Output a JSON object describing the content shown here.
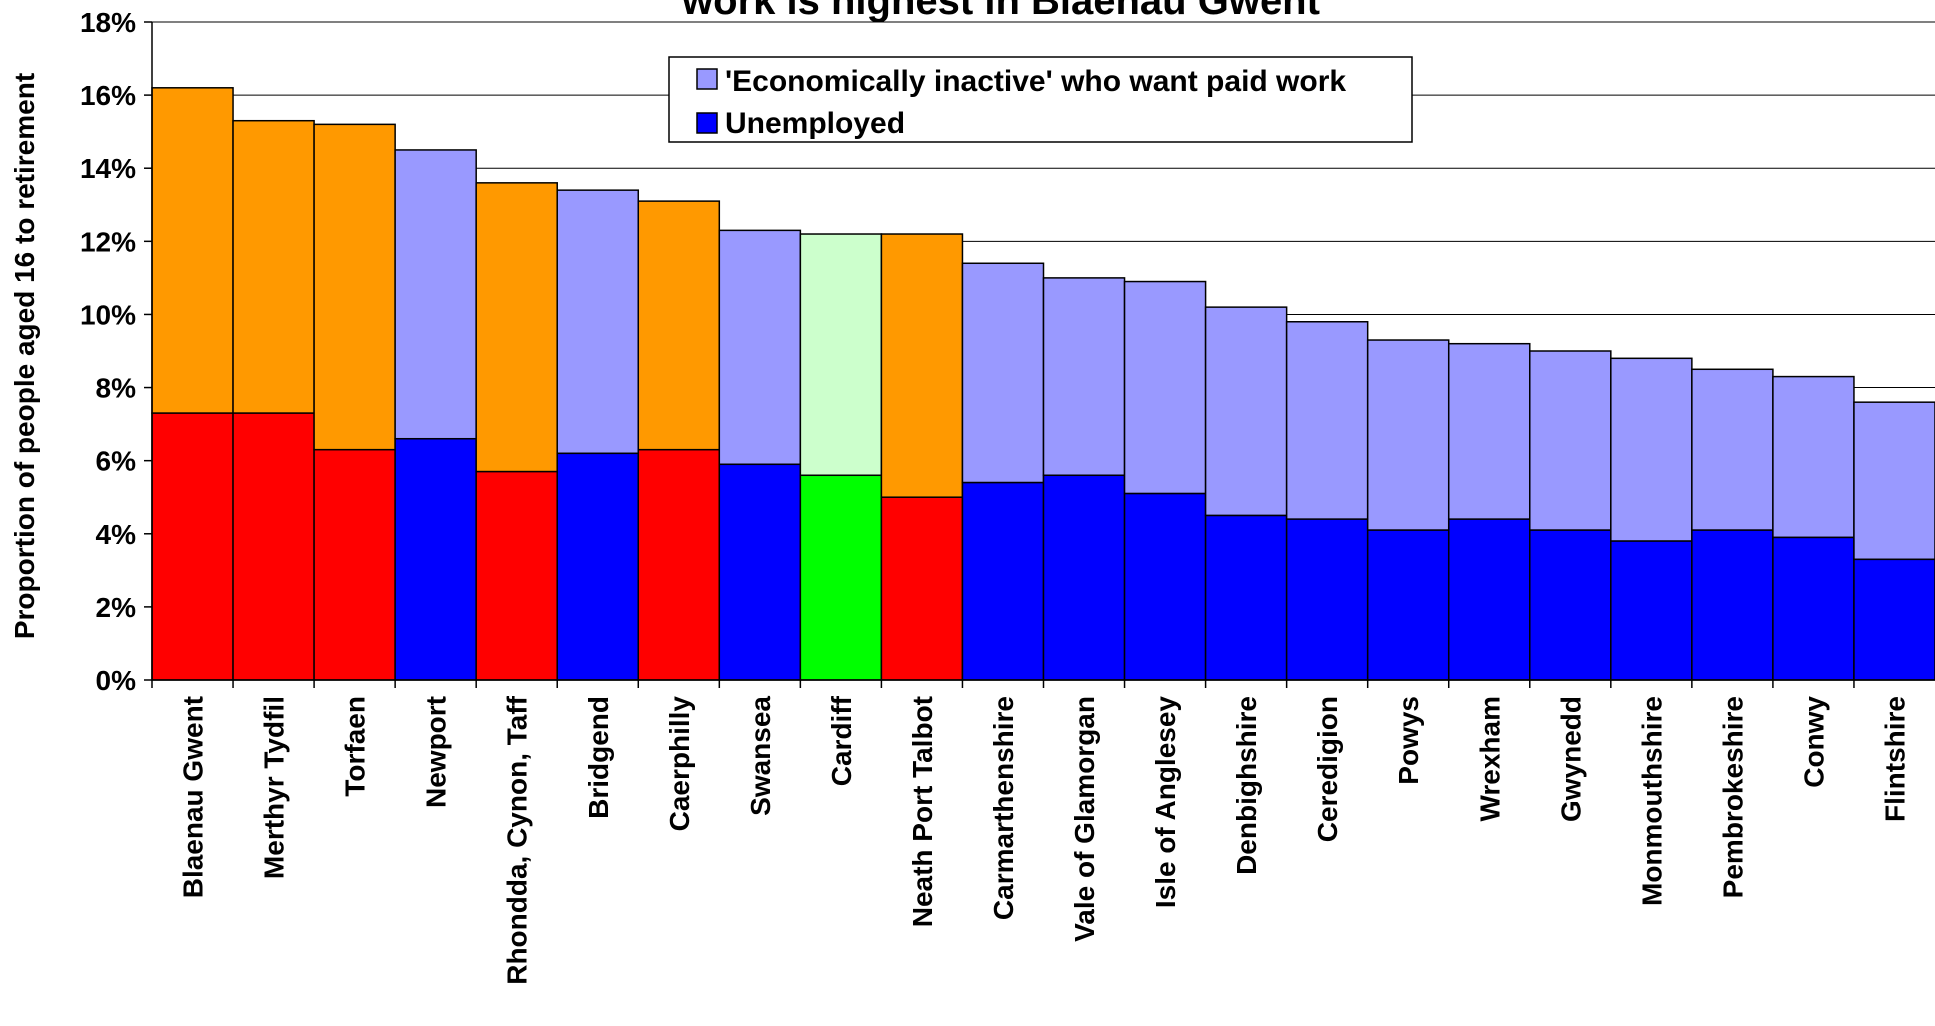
{
  "chart_data": {
    "type": "bar",
    "stacked": true,
    "title": "work is highest in Blaenau Gwent",
    "xlabel": "",
    "ylabel": "Proportion of people aged 16 to retirement",
    "ylim": [
      0,
      18
    ],
    "yticks": [
      "0%",
      "2%",
      "4%",
      "6%",
      "8%",
      "10%",
      "12%",
      "14%",
      "16%",
      "18%"
    ],
    "grid": true,
    "legend_position": "top-center",
    "categories": [
      "Blaenau Gwent",
      "Merthyr Tydfil",
      "Torfaen",
      "Newport",
      "Rhondda, Cynon, Taff",
      "Bridgend",
      "Caerphilly",
      "Swansea",
      "Cardiff",
      "Neath Port Talbot",
      "Carmarthenshire",
      "Vale of Glamorgan",
      "Isle of Anglesey",
      "Denbighshire",
      "Ceredigion",
      "Powys",
      "Wrexham",
      "Gwynedd",
      "Monmouthshire",
      "Pembrokeshire",
      "Conwy",
      "Flintshire"
    ],
    "series": [
      {
        "name": "Unemployed",
        "values": [
          7.3,
          7.3,
          6.3,
          6.6,
          5.7,
          6.2,
          6.3,
          5.9,
          5.6,
          5.0,
          5.4,
          5.6,
          5.1,
          4.5,
          4.4,
          4.1,
          4.4,
          4.1,
          3.8,
          4.1,
          3.9,
          3.3
        ]
      },
      {
        "name": "'Economically inactive' who want paid work",
        "values": [
          8.9,
          8.0,
          8.9,
          7.9,
          7.9,
          7.2,
          6.8,
          6.4,
          6.6,
          7.2,
          6.0,
          5.4,
          5.8,
          5.7,
          5.4,
          5.2,
          4.8,
          4.9,
          5.0,
          4.4,
          4.4,
          4.3
        ]
      }
    ],
    "category_colors": [
      "red",
      "red",
      "red",
      "blue",
      "red",
      "blue",
      "red",
      "blue",
      "green",
      "red",
      "blue",
      "blue",
      "blue",
      "blue",
      "blue",
      "blue",
      "blue",
      "blue",
      "blue",
      "blue",
      "blue",
      "blue"
    ],
    "palettes": {
      "blue": {
        "unemployed": "#0000FF",
        "inactive": "#9999FF"
      },
      "red": {
        "unemployed": "#FF0000",
        "inactive": "#FF9900"
      },
      "green": {
        "unemployed": "#00FF00",
        "inactive": "#CCFFCC"
      }
    },
    "legend": [
      {
        "label": "'Economically inactive' who want paid work",
        "color": "#9999FF"
      },
      {
        "label": "Unemployed",
        "color": "#0000FF"
      }
    ]
  }
}
